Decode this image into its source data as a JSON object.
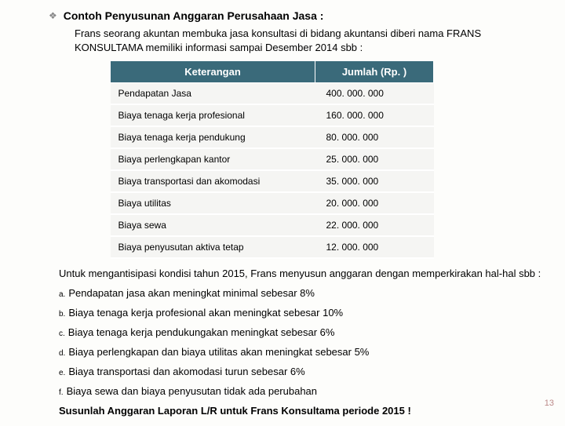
{
  "title": "Contoh Penyusunan Anggaran Perusahaan Jasa :",
  "intro": "Frans seorang akuntan membuka jasa konsultasi di bidang akuntansi diberi nama FRANS KONSULTAMA  memiliki informasi  sampai Desember 2014 sbb :",
  "table": {
    "header_bg": "#3a6a7a",
    "header_fg": "#ffffff",
    "cell_bg": "#f5f5f3",
    "columns": [
      "Keterangan",
      "Jumlah (Rp. )"
    ],
    "rows": [
      [
        "Pendapatan Jasa",
        "400. 000. 000"
      ],
      [
        "Biaya tenaga kerja profesional",
        "160. 000. 000"
      ],
      [
        "Biaya tenaga kerja pendukung",
        "80. 000. 000"
      ],
      [
        "Biaya perlengkapan kantor",
        "25. 000. 000"
      ],
      [
        "Biaya transportasi dan akomodasi",
        "35. 000. 000"
      ],
      [
        "Biaya utilitas",
        "20. 000. 000"
      ],
      [
        "Biaya sewa",
        "22. 000. 000"
      ],
      [
        "Biaya penyusutan aktiva tetap",
        "12. 000. 000"
      ]
    ]
  },
  "para2": "Untuk mengantisipasi kondisi tahun 2015, Frans menyusun anggaran dengan memperkirakan hal-hal sbb :",
  "items": [
    {
      "m": "a.",
      "t": "Pendapatan jasa akan meningkat minimal sebesar 8%"
    },
    {
      "m": "b.",
      "t": "Biaya tenaga kerja profesional akan meningkat sebesar 10%"
    },
    {
      "m": "c.",
      "t": "Biaya tenaga kerja pendukungakan meningkat sebesar 6%"
    },
    {
      "m": "d.",
      "t": "Biaya perlengkapan dan biaya utilitas akan meningkat sebesar 5%"
    },
    {
      "m": "e.",
      "t": "Biaya transportasi dan akomodasi turun sebesar 6%"
    },
    {
      "m": "f.",
      "t": "Biaya sewa dan biaya penyusutan tidak ada perubahan"
    }
  ],
  "closing": "Susunlah Anggaran Laporan L/R untuk Frans Konsultama periode 2015  !",
  "page_num": "13"
}
